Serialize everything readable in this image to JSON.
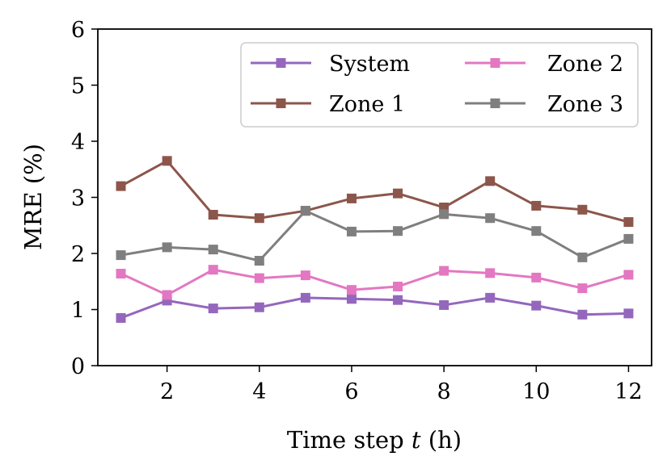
{
  "chart_data": {
    "type": "line",
    "title": "",
    "xlabel_prefix": "Time step ",
    "xlabel_var": "t",
    "xlabel_suffix": " (h)",
    "ylabel": "MRE (%)",
    "xlim": [
      0.5,
      12.5
    ],
    "ylim": [
      0,
      6
    ],
    "xticks": [
      2,
      4,
      6,
      8,
      10,
      12
    ],
    "yticks": [
      0,
      1,
      2,
      3,
      4,
      5,
      6
    ],
    "x": [
      1,
      2,
      3,
      4,
      5,
      6,
      7,
      8,
      9,
      10,
      11,
      12
    ],
    "grid": false,
    "legend_position": "top-right",
    "series": [
      {
        "name": "System",
        "color": "#9467bd",
        "marker": "square",
        "values": [
          0.85,
          1.16,
          1.02,
          1.04,
          1.21,
          1.19,
          1.17,
          1.08,
          1.21,
          1.07,
          0.91,
          0.93
        ]
      },
      {
        "name": "Zone 1",
        "color": "#8c564b",
        "marker": "square",
        "values": [
          3.2,
          3.65,
          2.69,
          2.63,
          2.76,
          2.98,
          3.07,
          2.82,
          3.29,
          2.85,
          2.78,
          2.56
        ]
      },
      {
        "name": "Zone 2",
        "color": "#e377c2",
        "marker": "square",
        "values": [
          1.64,
          1.26,
          1.71,
          1.56,
          1.61,
          1.35,
          1.41,
          1.69,
          1.65,
          1.57,
          1.38,
          1.62
        ]
      },
      {
        "name": "Zone 3",
        "color": "#7f7f7f",
        "marker": "square",
        "values": [
          1.97,
          2.11,
          2.07,
          1.87,
          2.76,
          2.39,
          2.4,
          2.7,
          2.63,
          2.4,
          1.93,
          2.26
        ]
      }
    ]
  }
}
